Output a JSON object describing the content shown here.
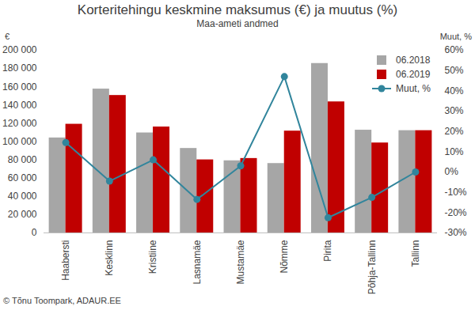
{
  "chart_data": {
    "type": "bar",
    "title": "Korteritehingu keskmine maksumus (€) ja muutus (%)",
    "subtitle": "Maa-ameti andmed",
    "caption": "© Tõnu Toompark, ADAUR.EE",
    "ylabel": "€",
    "y2label": "Muut, %",
    "categories": [
      "Haabersti",
      "Kesklinn",
      "Kristiine",
      "Lasnamäe",
      "Mustamäe",
      "Nõmme",
      "Pirita",
      "Põhja-Tallinn",
      "Tallinn"
    ],
    "series": [
      {
        "name": "06.2018",
        "color": "#a6a6a6",
        "values": [
          104000,
          157500,
          109500,
          92500,
          79000,
          76000,
          185500,
          112500,
          112000
        ]
      },
      {
        "name": "06.2019",
        "color": "#c00000",
        "values": [
          119000,
          150500,
          116000,
          80000,
          81500,
          111500,
          143500,
          98500,
          112000
        ]
      },
      {
        "name": "Muut, %",
        "type": "line",
        "axis": "y2",
        "color": "#31859c",
        "marker": "circle",
        "values": [
          14.5,
          -4.5,
          6,
          -13.5,
          3,
          47,
          -22.5,
          -12.5,
          0
        ]
      }
    ],
    "ylim": [
      0,
      200000
    ],
    "yticks": [
      0,
      {
        "value": 20000,
        "label": "20 000"
      },
      {
        "value": 40000,
        "label": "40 000"
      },
      {
        "value": 60000,
        "label": "60 000"
      },
      {
        "value": 80000,
        "label": "80 000"
      },
      {
        "value": 100000,
        "label": "100 000"
      },
      {
        "value": 120000,
        "label": "120 000"
      },
      {
        "value": 140000,
        "label": "140 000"
      },
      {
        "value": 160000,
        "label": "160 000"
      },
      {
        "value": 180000,
        "label": "180 000"
      },
      {
        "value": 200000,
        "label": "200 000"
      }
    ],
    "y2lim": [
      -30,
      60
    ],
    "y2ticks": [
      {
        "value": -30,
        "label": "-30%"
      },
      {
        "value": -20,
        "label": "-20%"
      },
      {
        "value": -10,
        "label": "-10%"
      },
      {
        "value": 0,
        "label": "0%"
      },
      {
        "value": 10,
        "label": "10%"
      },
      {
        "value": 20,
        "label": "20%"
      },
      {
        "value": 30,
        "label": "30%"
      },
      {
        "value": 40,
        "label": "40%"
      },
      {
        "value": 50,
        "label": "50%"
      },
      {
        "value": 60,
        "label": "60%"
      }
    ],
    "grid": false,
    "legend": "top-right"
  }
}
